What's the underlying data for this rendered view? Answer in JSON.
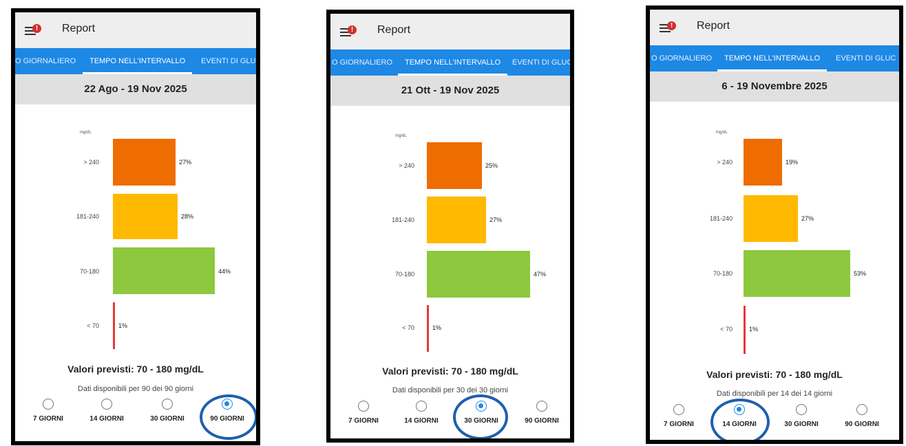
{
  "colors": {
    "very_high": "#ef6c00",
    "high": "#ffb900",
    "in_range": "#8dc83e",
    "low": "#e53935",
    "tab_bar": "#1e88e5",
    "annotation_ring": "#1f5fae"
  },
  "icons": {
    "menu": "hamburger-menu-icon",
    "alert": "alert-badge-icon"
  },
  "screens": [
    {
      "app_title": "Report",
      "alert_badge": "!",
      "tabs": [
        "O GIORNALIERO",
        "TEMPO NELL'INTERVALLO",
        "EVENTI DI GLUC"
      ],
      "active_tab": 1,
      "date_range": "22 Ago - 19 Nov 2025",
      "unit": "mg/dL",
      "ranges": [
        {
          "label": "> 240",
          "value": 27,
          "value_label": "27%"
        },
        {
          "label": "181-240",
          "value": 28,
          "value_label": "28%"
        },
        {
          "label": "70-180",
          "value": 44,
          "value_label": "44%"
        },
        {
          "label": "< 70",
          "value": 1,
          "value_label": "1%"
        }
      ],
      "target_text": "Valori previsti: 70 - 180 mg/dL",
      "availability_text": "Dati disponibili per 90 dei 90 giorni",
      "options": [
        "7 GIORNI",
        "14 GIORNI",
        "30 GIORNI",
        "90 GIORNI"
      ],
      "selected_option": 3
    },
    {
      "app_title": "Report",
      "alert_badge": "!",
      "tabs": [
        "O GIORNALIERO",
        "TEMPO NELL'INTERVALLO",
        "EVENTI DI GLUC"
      ],
      "active_tab": 1,
      "date_range": "21 Ott - 19 Nov 2025",
      "unit": "mg/dL",
      "ranges": [
        {
          "label": "> 240",
          "value": 25,
          "value_label": "25%"
        },
        {
          "label": "181-240",
          "value": 27,
          "value_label": "27%"
        },
        {
          "label": "70-180",
          "value": 47,
          "value_label": "47%"
        },
        {
          "label": "< 70",
          "value": 1,
          "value_label": "1%"
        }
      ],
      "target_text": "Valori previsti: 70 - 180 mg/dL",
      "availability_text": "Dati disponibili per 30 dei 30 giorni",
      "options": [
        "7 GIORNI",
        "14 GIORNI",
        "30 GIORNI",
        "90 GIORNI"
      ],
      "selected_option": 2
    },
    {
      "app_title": "Report",
      "alert_badge": "!",
      "tabs": [
        "O GIORNALIERO",
        "TEMPO NELL'INTERVALLO",
        "EVENTI DI GLUC"
      ],
      "active_tab": 1,
      "date_range": "6 - 19 Novembre 2025",
      "unit": "mg/dL",
      "ranges": [
        {
          "label": "> 240",
          "value": 19,
          "value_label": "19%"
        },
        {
          "label": "181-240",
          "value": 27,
          "value_label": "27%"
        },
        {
          "label": "70-180",
          "value": 53,
          "value_label": "53%"
        },
        {
          "label": "< 70",
          "value": 1,
          "value_label": "1%"
        }
      ],
      "target_text": "Valori previsti: 70 - 180 mg/dL",
      "availability_text": "Dati disponibili per 14 dei 14 giorni",
      "options": [
        "7 GIORNI",
        "14 GIORNI",
        "30 GIORNI",
        "90 GIORNI"
      ],
      "selected_option": 1
    }
  ]
}
